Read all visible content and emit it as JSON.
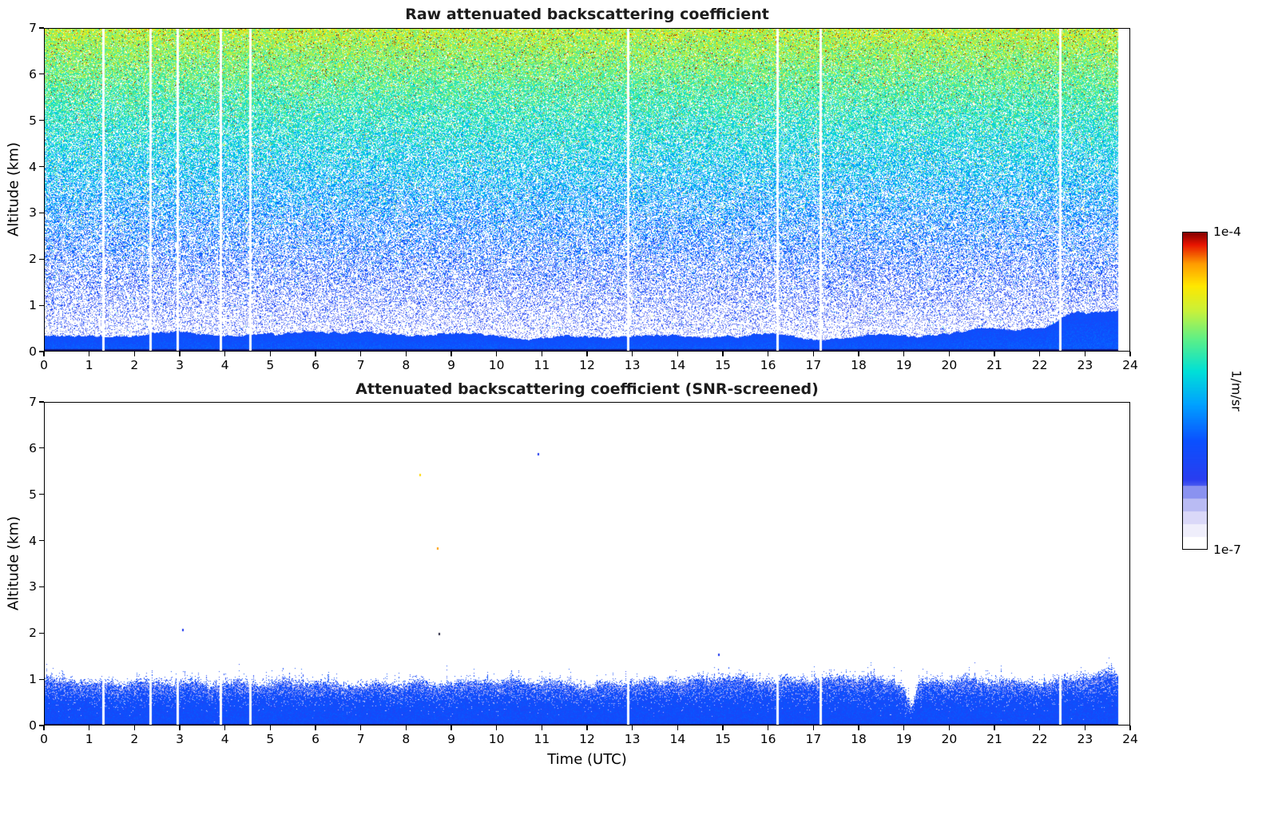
{
  "figure": {
    "background": "#ffffff",
    "text_color": "#000000"
  },
  "chart_data": [
    {
      "type": "heatmap",
      "panel": "top",
      "title": "Raw attenuated backscattering coefficient",
      "xlabel": "",
      "ylabel": "Altitude (km)",
      "xlim": [
        0,
        24
      ],
      "ylim": [
        0,
        7
      ],
      "xticks": [
        0,
        1,
        2,
        3,
        4,
        5,
        6,
        7,
        8,
        9,
        10,
        11,
        12,
        13,
        14,
        15,
        16,
        17,
        18,
        19,
        20,
        21,
        22,
        23,
        24
      ],
      "yticks": [
        0,
        1,
        2,
        3,
        4,
        5,
        6,
        7
      ],
      "grid": false,
      "legend": "none",
      "time_coverage_utc": [
        0,
        23.72
      ],
      "data_gaps_utc": [
        1.3,
        2.35,
        2.95,
        3.9,
        4.55,
        12.9,
        16.2,
        17.15,
        22.45
      ],
      "surface_layer_top_km_by_hour": [
        0.35,
        0.3,
        0.35,
        0.4,
        0.38,
        0.35,
        0.45,
        0.4,
        0.35,
        0.4,
        0.35,
        0.3,
        0.33,
        0.35,
        0.3,
        0.33,
        0.35,
        0.3,
        0.32,
        0.35,
        0.4,
        0.5,
        0.55,
        0.8,
        1.0
      ],
      "description": "Noisy raw lidar backscatter: solid blue aerosol layer below about 0.5 km, sparse dark-blue speckle on white just above it, then increasingly dense noise whose apparent magnitude grows with altitude from blue through cyan and green to yellow, with orange and red specks near 7 km. Thin white vertical stripes mark data gaps."
    },
    {
      "type": "heatmap",
      "panel": "bottom",
      "title": "Attenuated backscattering coefficient (SNR-screened)",
      "xlabel": "Time (UTC)",
      "ylabel": "Altitude (km)",
      "xlim": [
        0,
        24
      ],
      "ylim": [
        0,
        7
      ],
      "xticks": [
        0,
        1,
        2,
        3,
        4,
        5,
        6,
        7,
        8,
        9,
        10,
        11,
        12,
        13,
        14,
        15,
        16,
        17,
        18,
        19,
        20,
        21,
        22,
        23,
        24
      ],
      "yticks": [
        0,
        1,
        2,
        3,
        4,
        5,
        6,
        7
      ],
      "grid": false,
      "legend": "none",
      "time_coverage_utc": [
        0,
        23.72
      ],
      "data_gaps_utc": [
        1.3,
        2.35,
        2.95,
        3.9,
        4.55,
        12.9,
        16.2,
        17.15,
        22.45
      ],
      "layer_top_km_by_hour": [
        0.9,
        0.88,
        0.95,
        0.9,
        0.85,
        0.85,
        0.9,
        0.85,
        0.9,
        0.85,
        0.9,
        0.9,
        0.85,
        0.9,
        0.9,
        0.95,
        0.95,
        1.0,
        1.0,
        0.85,
        0.9,
        0.95,
        0.9,
        1.0,
        1.0
      ],
      "notch": {
        "time_utc": 19.15,
        "top_km": 0.4,
        "width_h": 0.12
      },
      "residual_specks": [
        {
          "time_utc": 3.05,
          "altitude_km": 2.1,
          "color": "#1a35f0"
        },
        {
          "time_utc": 8.72,
          "altitude_km": 2.0,
          "color": "#20203a"
        },
        {
          "time_utc": 8.68,
          "altitude_km": 3.85,
          "color": "#ff9c00"
        },
        {
          "time_utc": 8.3,
          "altitude_km": 5.45,
          "color": "#ffd700"
        },
        {
          "time_utc": 10.9,
          "altitude_km": 5.9,
          "color": "#1a35f0"
        },
        {
          "time_utc": 14.9,
          "altitude_km": 1.55,
          "color": "#1a35f0"
        }
      ],
      "description": "After SNR screening only the boundary-layer aerosol below about 1 km remains: a solid blue layer with lighter whitish mottling inside and a ragged speckled top edge, a narrow notch near 19.1 UTC, rising to about 1 km at the end of the day. Everything above is rejected (white) except a few residual specks."
    }
  ],
  "colorbar": {
    "label": "1/m/sr",
    "top_tick_label": "1e-4",
    "bottom_tick_label": "1e-7",
    "scale": "log",
    "orientation": "vertical",
    "colormap_stops": [
      {
        "t": 0.0,
        "color": "#ffffff"
      },
      {
        "t": 0.05,
        "color": "#eceafb"
      },
      {
        "t": 0.1,
        "color": "#cfcdf6"
      },
      {
        "t": 0.15,
        "color": "#9aa0f0"
      },
      {
        "t": 0.22,
        "color": "#2a3ef0"
      },
      {
        "t": 0.34,
        "color": "#0b50ff"
      },
      {
        "t": 0.46,
        "color": "#00a4ff"
      },
      {
        "t": 0.56,
        "color": "#00e0d8"
      },
      {
        "t": 0.66,
        "color": "#5bf08a"
      },
      {
        "t": 0.75,
        "color": "#c8f23c"
      },
      {
        "t": 0.83,
        "color": "#ffe800"
      },
      {
        "t": 0.9,
        "color": "#ff9c00"
      },
      {
        "t": 0.96,
        "color": "#e81500"
      },
      {
        "t": 1.0,
        "color": "#7f0000"
      }
    ]
  }
}
